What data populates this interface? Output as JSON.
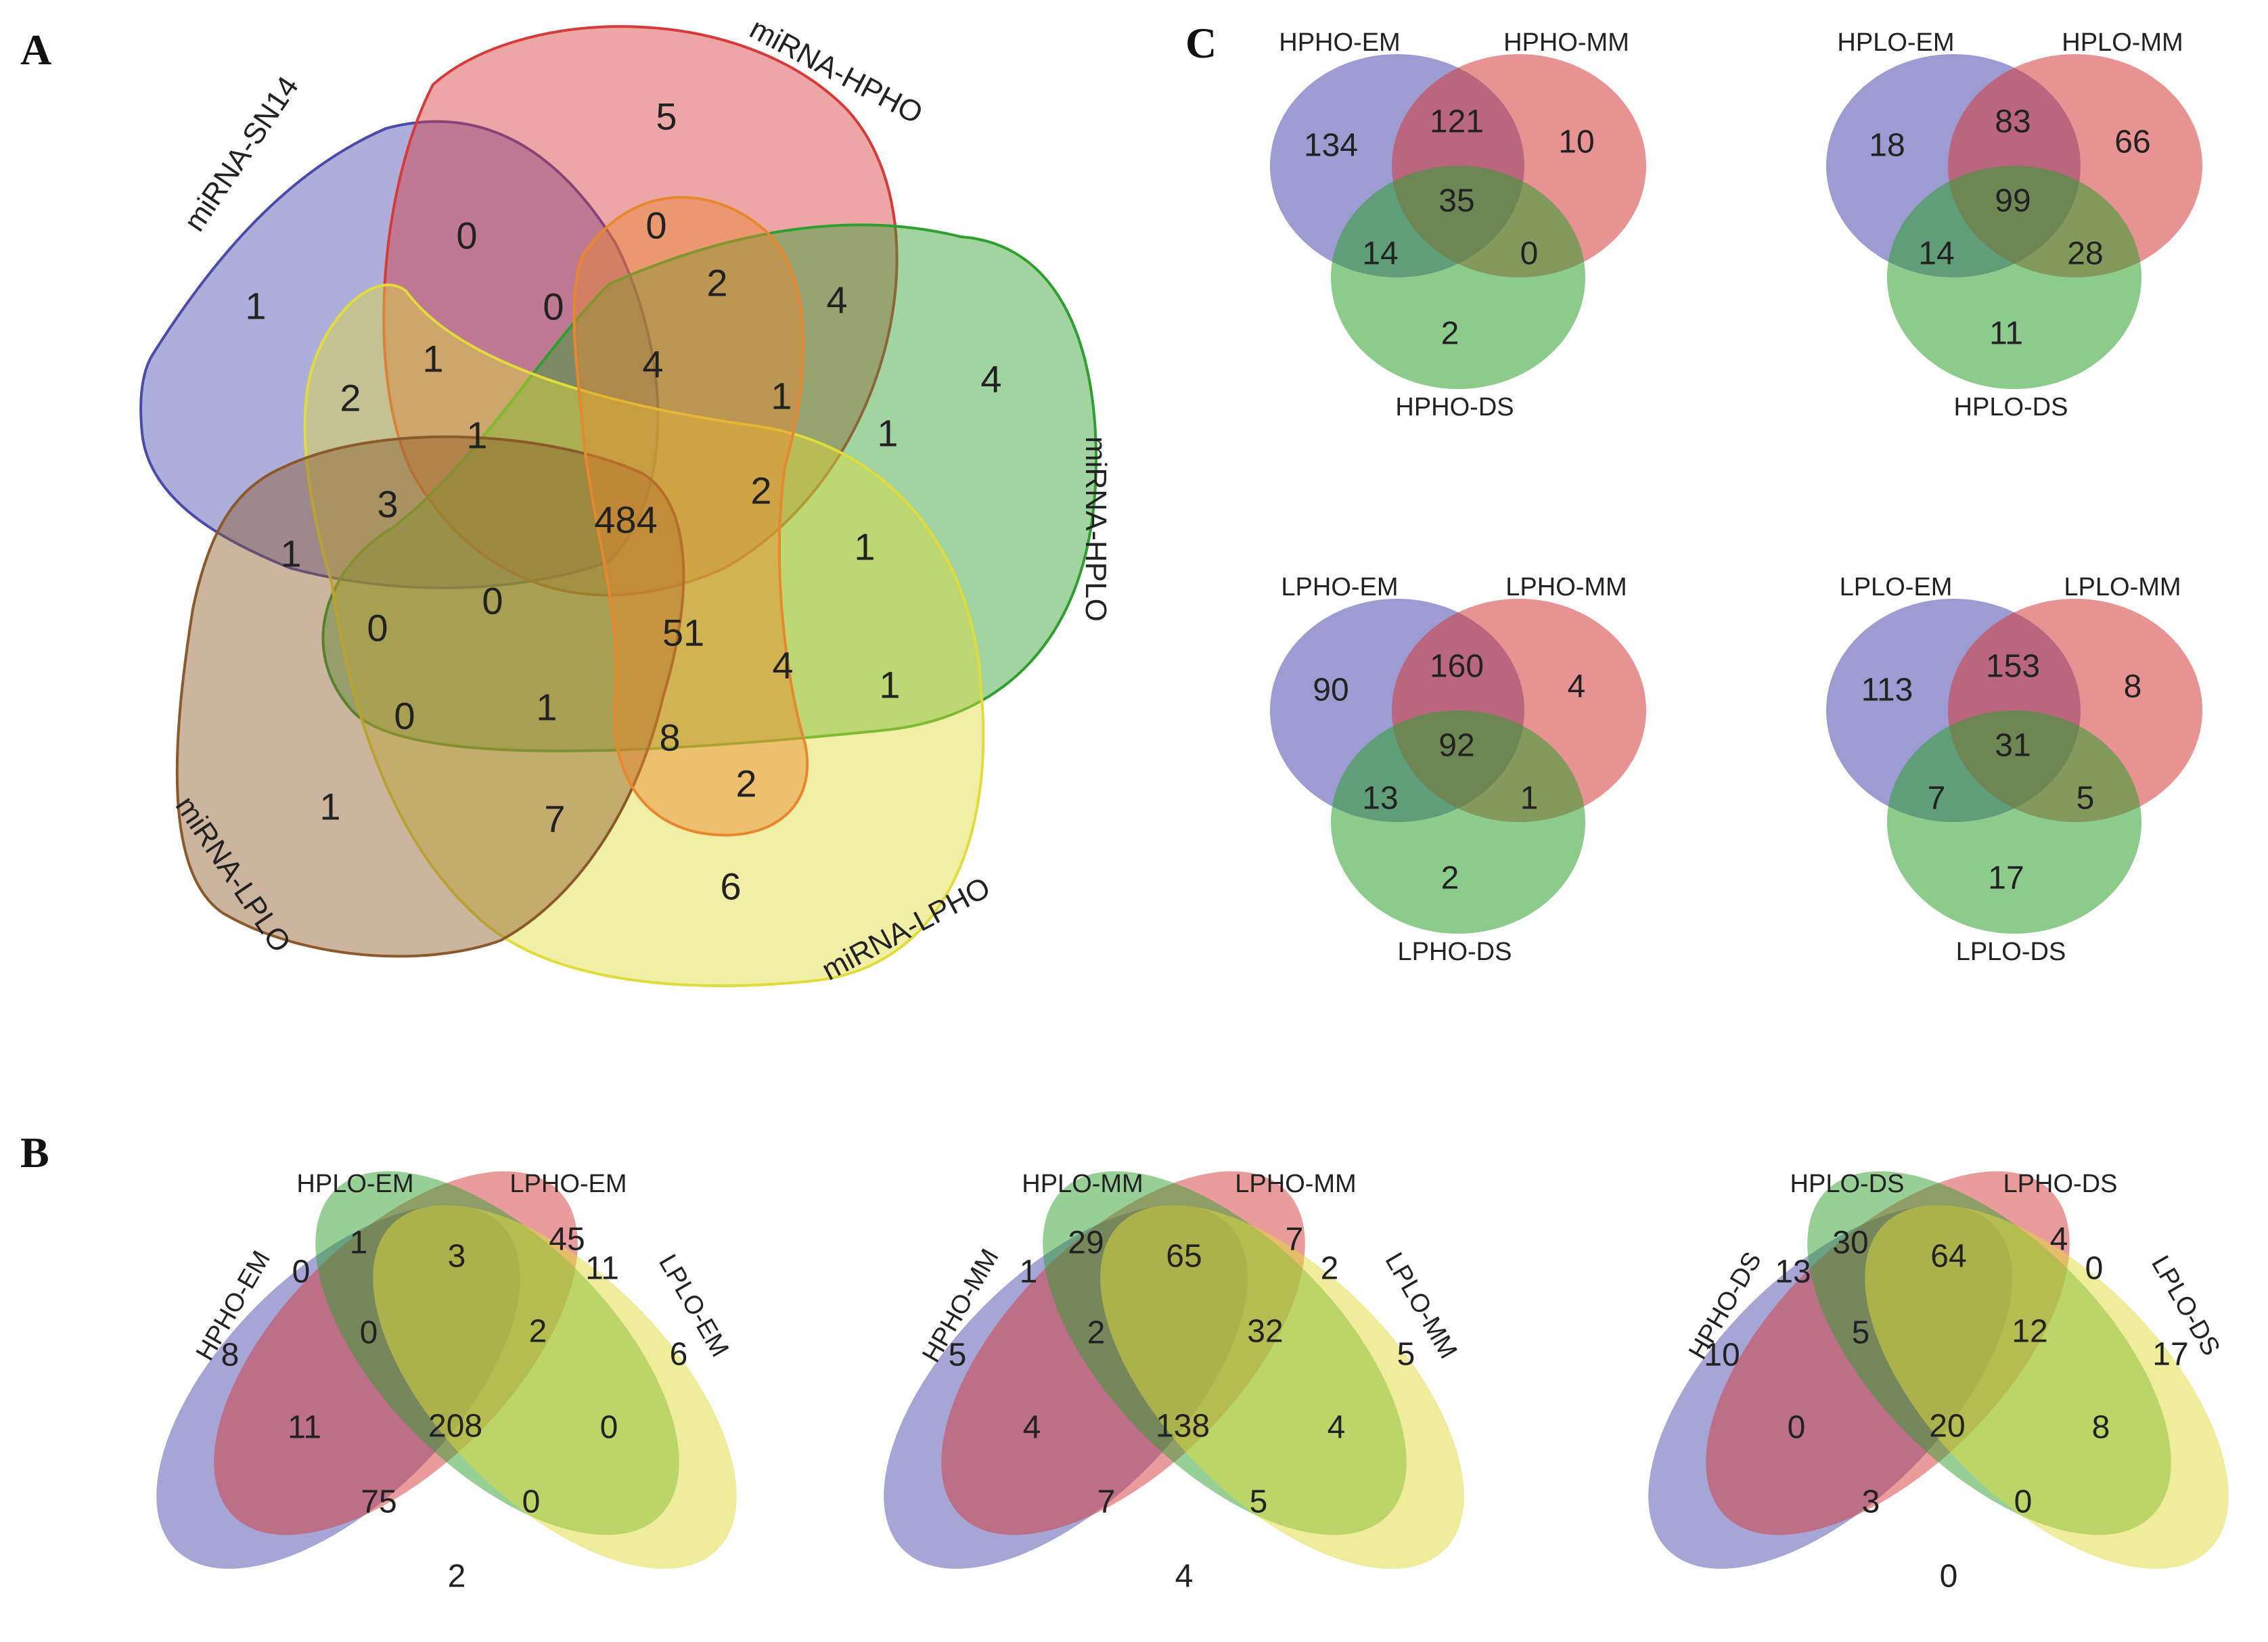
{
  "colors": {
    "blue": "#4b4bad",
    "red": "#d63a3a",
    "green": "#2fa02f",
    "yellow": "#e0dc3a",
    "brown": "#8b5a2b",
    "orange": "#e8872e"
  },
  "panels": {
    "A": "A",
    "B": "B",
    "C": "C"
  },
  "panel_a": {
    "sets": [
      "miRNA-SN14",
      "miRNA-HPHO",
      "miRNA-HPLO",
      "miRNA-LPHO",
      "miRNA-LPLO"
    ],
    "regions": [
      {
        "name": "sn14-only",
        "value": "1"
      },
      {
        "name": "hpho-only",
        "value": "5"
      },
      {
        "name": "hplo-only",
        "value": "4"
      },
      {
        "name": "lpho-only",
        "value": "6"
      },
      {
        "name": "lplo-only",
        "value": "1"
      },
      {
        "name": "r-0-a",
        "value": "0"
      },
      {
        "name": "r-0-b",
        "value": "0"
      },
      {
        "name": "r-2-a",
        "value": "2"
      },
      {
        "name": "r-4-a",
        "value": "4"
      },
      {
        "name": "r-0-c",
        "value": "0"
      },
      {
        "name": "r-1-a",
        "value": "1"
      },
      {
        "name": "r-2-b",
        "value": "2"
      },
      {
        "name": "r-4-b",
        "value": "4"
      },
      {
        "name": "r-1-b",
        "value": "1"
      },
      {
        "name": "r-1-c",
        "value": "1"
      },
      {
        "name": "r-3",
        "value": "3"
      },
      {
        "name": "r-1-d",
        "value": "1"
      },
      {
        "name": "center",
        "value": "484"
      },
      {
        "name": "r-2-c",
        "value": "2"
      },
      {
        "name": "r-1-e",
        "value": "1"
      },
      {
        "name": "r-1-f",
        "value": "1"
      },
      {
        "name": "r-0-d",
        "value": "0"
      },
      {
        "name": "r-0-e",
        "value": "0"
      },
      {
        "name": "r-51",
        "value": "51"
      },
      {
        "name": "r-4-c",
        "value": "4"
      },
      {
        "name": "r-1-g",
        "value": "1"
      },
      {
        "name": "r-0-f",
        "value": "0"
      },
      {
        "name": "r-1-h",
        "value": "1"
      },
      {
        "name": "r-8",
        "value": "8"
      },
      {
        "name": "r-2-d",
        "value": "2"
      },
      {
        "name": "r-7",
        "value": "7"
      }
    ]
  },
  "panel_b": [
    {
      "sets": [
        "HPHO-EM",
        "HPLO-EM",
        "LPHO-EM",
        "LPLO-EM"
      ],
      "values": [
        "8",
        "1",
        "45",
        "6",
        "0",
        "3",
        "11",
        "0",
        "2",
        "11",
        "208",
        "0",
        "75",
        "0",
        "2"
      ]
    },
    {
      "sets": [
        "HPHO-MM",
        "HPLO-MM",
        "LPHO-MM",
        "LPLO-MM"
      ],
      "values": [
        "5",
        "29",
        "7",
        "5",
        "1",
        "65",
        "2",
        "2",
        "32",
        "4",
        "138",
        "4",
        "7",
        "5",
        "4"
      ]
    },
    {
      "sets": [
        "HPHO-DS",
        "HPLO-DS",
        "LPHO-DS",
        "LPLO-DS"
      ],
      "values": [
        "10",
        "30",
        "4",
        "17",
        "13",
        "64",
        "0",
        "5",
        "12",
        "0",
        "20",
        "8",
        "3",
        "0",
        "0"
      ]
    }
  ],
  "panel_c": [
    {
      "sets": [
        "HPHO-EM",
        "HPHO-MM",
        "HPHO-DS"
      ],
      "values": [
        "134",
        "121",
        "10",
        "35",
        "14",
        "0",
        "2"
      ]
    },
    {
      "sets": [
        "HPLO-EM",
        "HPLO-MM",
        "HPLO-DS"
      ],
      "values": [
        "18",
        "83",
        "66",
        "99",
        "14",
        "28",
        "11"
      ]
    },
    {
      "sets": [
        "LPHO-EM",
        "LPHO-MM",
        "LPHO-DS"
      ],
      "values": [
        "90",
        "160",
        "4",
        "92",
        "13",
        "1",
        "2"
      ]
    },
    {
      "sets": [
        "LPLO-EM",
        "LPLO-MM",
        "LPLO-DS"
      ],
      "values": [
        "113",
        "153",
        "8",
        "31",
        "7",
        "5",
        "17"
      ]
    }
  ]
}
